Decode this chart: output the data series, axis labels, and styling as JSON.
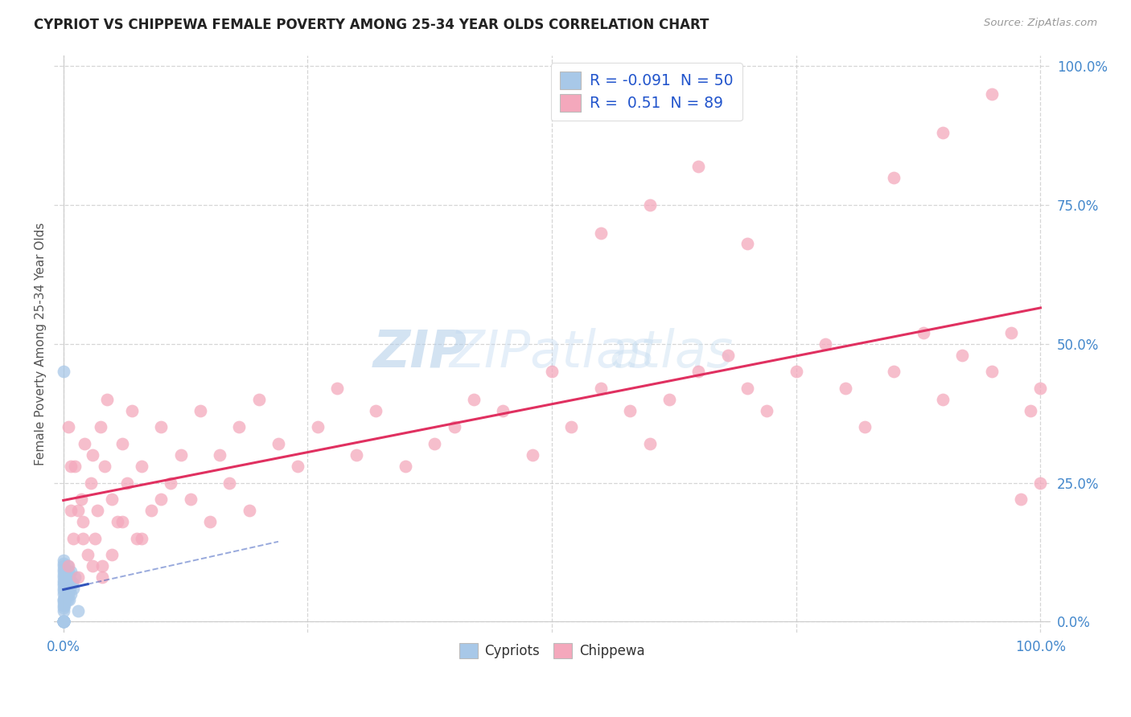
{
  "title": "CYPRIOT VS CHIPPEWA FEMALE POVERTY AMONG 25-34 YEAR OLDS CORRELATION CHART",
  "source": "Source: ZipAtlas.com",
  "ylabel": "Female Poverty Among 25-34 Year Olds",
  "cypriot_R": -0.091,
  "cypriot_N": 50,
  "chippewa_R": 0.51,
  "chippewa_N": 89,
  "cypriot_color": "#a8c8e8",
  "chippewa_color": "#f4a8bc",
  "cypriot_line_color": "#3355bb",
  "chippewa_line_color": "#e03060",
  "axis_label_color": "#4488cc",
  "grid_color": "#cccccc",
  "title_color": "#222222",
  "source_color": "#999999",
  "bg_color": "#ffffff",
  "watermark_zip_color": "#c0d8f0",
  "watermark_atlas_color": "#d0e8f8",
  "legend_r_color": "#2255cc",
  "legend_n_color": "#2255cc",
  "x_ticks": [
    0.0,
    0.25,
    0.5,
    0.75,
    1.0
  ],
  "y_ticks": [
    0.0,
    0.25,
    0.5,
    0.75,
    1.0
  ],
  "x_tick_labels": [
    "0.0%",
    "",
    "",
    "",
    "100.0%"
  ],
  "y_tick_labels_right": [
    "0.0%",
    "25.0%",
    "50.0%",
    "75.0%",
    "100.0%"
  ],
  "bottom_legend_labels": [
    "Cypriots",
    "Chippewa"
  ],
  "cypriot_x": [
    0.0,
    0.0,
    0.0,
    0.0,
    0.0,
    0.0,
    0.0,
    0.0,
    0.0,
    0.0,
    0.0,
    0.0,
    0.0,
    0.0,
    0.0,
    0.0,
    0.0,
    0.0,
    0.0,
    0.0,
    0.0,
    0.0,
    0.0,
    0.0,
    0.0,
    0.0,
    0.0,
    0.0,
    0.0,
    0.0,
    0.001,
    0.001,
    0.002,
    0.002,
    0.002,
    0.003,
    0.003,
    0.004,
    0.004,
    0.005,
    0.005,
    0.006,
    0.006,
    0.007,
    0.008,
    0.008,
    0.009,
    0.01,
    0.012,
    0.015
  ],
  "cypriot_y": [
    0.0,
    0.0,
    0.0,
    0.0,
    0.0,
    0.0,
    0.0,
    0.0,
    0.0,
    0.0,
    0.02,
    0.025,
    0.03,
    0.035,
    0.04,
    0.04,
    0.05,
    0.055,
    0.06,
    0.065,
    0.07,
    0.075,
    0.08,
    0.085,
    0.09,
    0.095,
    0.1,
    0.105,
    0.11,
    0.45,
    0.03,
    0.07,
    0.04,
    0.06,
    0.09,
    0.05,
    0.08,
    0.04,
    0.1,
    0.05,
    0.09,
    0.04,
    0.08,
    0.06,
    0.05,
    0.09,
    0.07,
    0.06,
    0.08,
    0.02
  ],
  "chippewa_x": [
    0.005,
    0.008,
    0.01,
    0.012,
    0.015,
    0.018,
    0.02,
    0.022,
    0.025,
    0.028,
    0.03,
    0.032,
    0.035,
    0.038,
    0.04,
    0.042,
    0.045,
    0.05,
    0.055,
    0.06,
    0.065,
    0.07,
    0.075,
    0.08,
    0.09,
    0.1,
    0.11,
    0.12,
    0.13,
    0.14,
    0.15,
    0.16,
    0.17,
    0.18,
    0.19,
    0.2,
    0.22,
    0.24,
    0.26,
    0.28,
    0.3,
    0.32,
    0.35,
    0.38,
    0.4,
    0.42,
    0.45,
    0.48,
    0.5,
    0.52,
    0.55,
    0.58,
    0.6,
    0.62,
    0.65,
    0.68,
    0.7,
    0.72,
    0.75,
    0.78,
    0.8,
    0.82,
    0.85,
    0.88,
    0.9,
    0.92,
    0.95,
    0.97,
    0.99,
    1.0,
    0.005,
    0.008,
    0.015,
    0.02,
    0.03,
    0.04,
    0.05,
    0.06,
    0.08,
    0.1,
    0.55,
    0.6,
    0.65,
    0.7,
    0.85,
    0.9,
    0.95,
    0.98,
    1.0
  ],
  "chippewa_y": [
    0.1,
    0.2,
    0.15,
    0.28,
    0.08,
    0.22,
    0.18,
    0.32,
    0.12,
    0.25,
    0.3,
    0.15,
    0.2,
    0.35,
    0.1,
    0.28,
    0.4,
    0.22,
    0.18,
    0.32,
    0.25,
    0.38,
    0.15,
    0.28,
    0.2,
    0.35,
    0.25,
    0.3,
    0.22,
    0.38,
    0.18,
    0.3,
    0.25,
    0.35,
    0.2,
    0.4,
    0.32,
    0.28,
    0.35,
    0.42,
    0.3,
    0.38,
    0.28,
    0.32,
    0.35,
    0.4,
    0.38,
    0.3,
    0.45,
    0.35,
    0.42,
    0.38,
    0.32,
    0.4,
    0.45,
    0.48,
    0.42,
    0.38,
    0.45,
    0.5,
    0.42,
    0.35,
    0.45,
    0.52,
    0.4,
    0.48,
    0.45,
    0.52,
    0.38,
    0.42,
    0.35,
    0.28,
    0.2,
    0.15,
    0.1,
    0.08,
    0.12,
    0.18,
    0.15,
    0.22,
    0.7,
    0.75,
    0.82,
    0.68,
    0.8,
    0.88,
    0.95,
    0.22,
    0.25
  ]
}
